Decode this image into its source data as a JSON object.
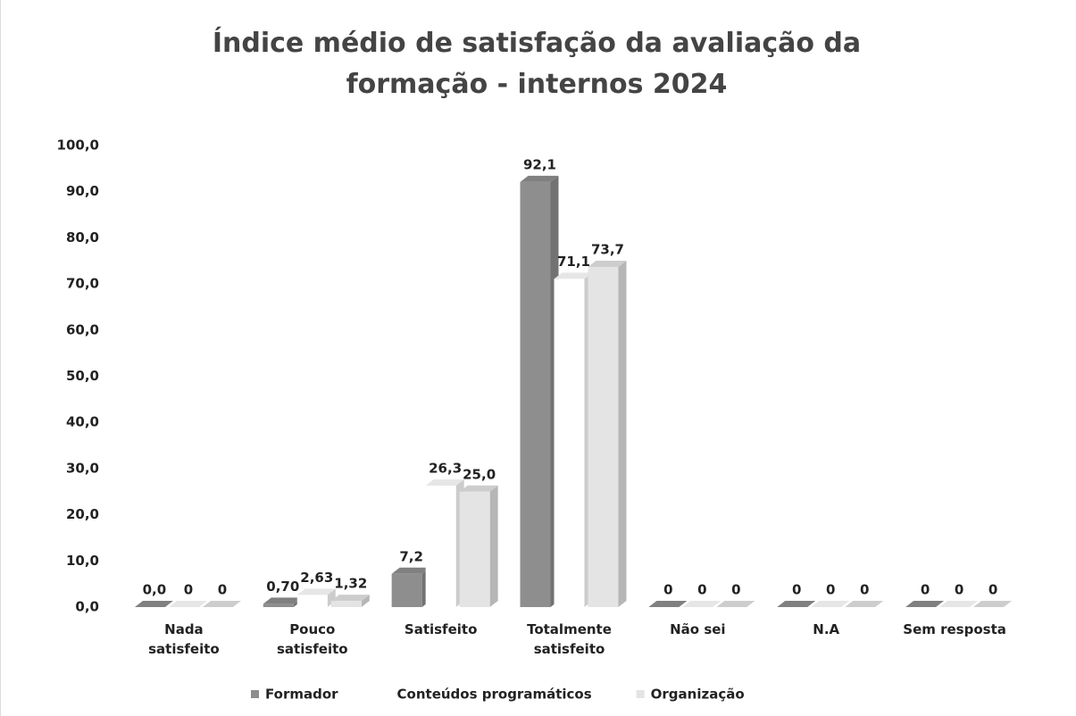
{
  "chart_data": {
    "type": "bar3d",
    "title": "Índice médio de satisfação da avaliação da formação - internos 2024",
    "categories": [
      "Nada satisfeito",
      "Pouco satisfeito",
      "Satisfeito",
      "Totalmente satisfeito",
      "Não sei",
      "N.A",
      "Sem resposta"
    ],
    "series": [
      {
        "name": "Formador",
        "color": "#8e8e8e",
        "values": [
          0.0,
          0.7,
          7.2,
          92.1,
          0,
          0,
          0
        ],
        "value_labels": [
          "0,0",
          "0,70",
          "7,2",
          "92,1",
          "0",
          "0",
          "0"
        ]
      },
      {
        "name": "Conteúdos programáticos",
        "color": "#ffffff",
        "values": [
          0,
          2.63,
          26.3,
          71.1,
          0,
          0,
          0
        ],
        "value_labels": [
          "0",
          "2,63",
          "26,3",
          "71,1",
          "0",
          "0",
          "0"
        ]
      },
      {
        "name": "Organização",
        "color": "#e4e4e4",
        "values": [
          0,
          1.32,
          25.0,
          73.7,
          0,
          0,
          0
        ],
        "value_labels": [
          "0",
          "1,32",
          "25,0",
          "73,7",
          "0",
          "0",
          "0"
        ]
      }
    ],
    "ylim": [
      0,
      100
    ],
    "yticks": [
      {
        "value": 0,
        "label": "0,0"
      },
      {
        "value": 10,
        "label": "10,0"
      },
      {
        "value": 20,
        "label": "20,0"
      },
      {
        "value": 30,
        "label": "30,0"
      },
      {
        "value": 40,
        "label": "40,0"
      },
      {
        "value": 50,
        "label": "50,0"
      },
      {
        "value": 60,
        "label": "60,0"
      },
      {
        "value": 70,
        "label": "70,0"
      },
      {
        "value": 80,
        "label": "80,0"
      },
      {
        "value": 90,
        "label": "90,0"
      },
      {
        "value": 100,
        "label": "100,0"
      }
    ],
    "legend": "bottom"
  }
}
